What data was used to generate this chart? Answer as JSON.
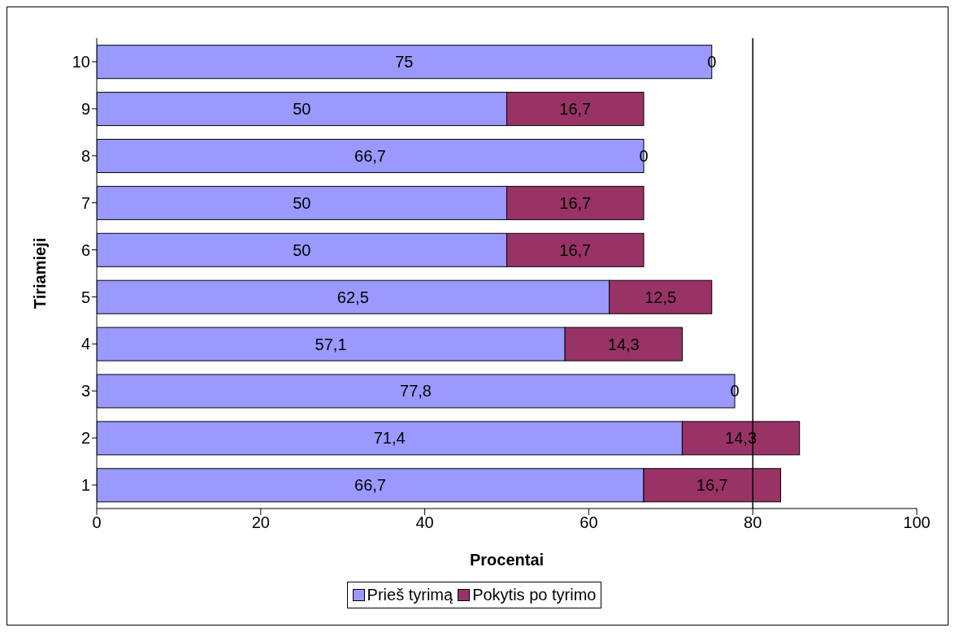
{
  "chart_data": {
    "type": "bar",
    "orientation": "horizontal",
    "stacked": true,
    "categories": [
      "10",
      "9",
      "8",
      "7",
      "6",
      "5",
      "4",
      "3",
      "2",
      "1"
    ],
    "series": [
      {
        "name": "Prieš tyrimą",
        "color": "#9999ff",
        "values": [
          75,
          50,
          66.7,
          50,
          50,
          62.5,
          57.1,
          77.8,
          71.4,
          66.7
        ],
        "value_labels": [
          "75",
          "50",
          "66,7",
          "50",
          "50",
          "62,5",
          "57,1",
          "77,8",
          "71,4",
          "66,7"
        ]
      },
      {
        "name": "Pokytis po tyrimo",
        "color": "#993366",
        "values": [
          0,
          16.7,
          0,
          16.7,
          16.7,
          12.5,
          14.3,
          0,
          14.3,
          16.7
        ],
        "value_labels": [
          "0",
          "16,7",
          "0",
          "16,7",
          "16,7",
          "12,5",
          "14,3",
          "0",
          "14,3",
          "16,7"
        ]
      }
    ],
    "xlim": [
      0,
      100
    ],
    "xticks": [
      0,
      20,
      40,
      60,
      80,
      100
    ],
    "xlabel": "Procentai",
    "ylabel": "Tiriamieji",
    "legend": "bottom",
    "ref_lines": [
      {
        "axis": "x",
        "value": 80,
        "color": "#000000"
      }
    ]
  }
}
